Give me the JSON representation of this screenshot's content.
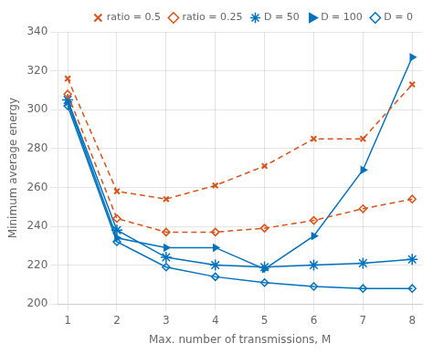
{
  "chart_data": {
    "type": "line",
    "xlabel": "Max. number of transmissions, M",
    "ylabel": "Minimum average energy",
    "x": [
      1,
      2,
      3,
      4,
      5,
      6,
      7,
      8
    ],
    "series": [
      {
        "name": "ratio = 0.5",
        "color": "#d95319",
        "marker": "x",
        "line_style": "dashed",
        "values": [
          316,
          258,
          254,
          261,
          271,
          285,
          285,
          313
        ]
      },
      {
        "name": "ratio = 0.25",
        "color": "#d95319",
        "marker": "diamond-open",
        "line_style": "dashed",
        "values": [
          308,
          244,
          237,
          237,
          239,
          243,
          249,
          254
        ]
      },
      {
        "name": "D = 50",
        "color": "#0072bd",
        "marker": "star",
        "line_style": "solid",
        "values": [
          305,
          238,
          224,
          220,
          219,
          220,
          221,
          223
        ]
      },
      {
        "name": "D = 100",
        "color": "#0072bd",
        "marker": "triangle-right",
        "line_style": "solid",
        "values": [
          304,
          234,
          229,
          229,
          218,
          235,
          269,
          327
        ]
      },
      {
        "name": "D = 0",
        "color": "#0072bd",
        "marker": "diamond-open",
        "line_style": "solid",
        "values": [
          302,
          232,
          219,
          214,
          211,
          209,
          208,
          208
        ]
      }
    ],
    "xlim": [
      0.8,
      8.2
    ],
    "ylim": [
      200,
      340
    ],
    "xticks": [
      1,
      2,
      3,
      4,
      5,
      6,
      7,
      8
    ],
    "yticks": [
      200,
      220,
      240,
      260,
      280,
      300,
      320,
      340
    ],
    "grid": true,
    "legend": "upper right"
  }
}
